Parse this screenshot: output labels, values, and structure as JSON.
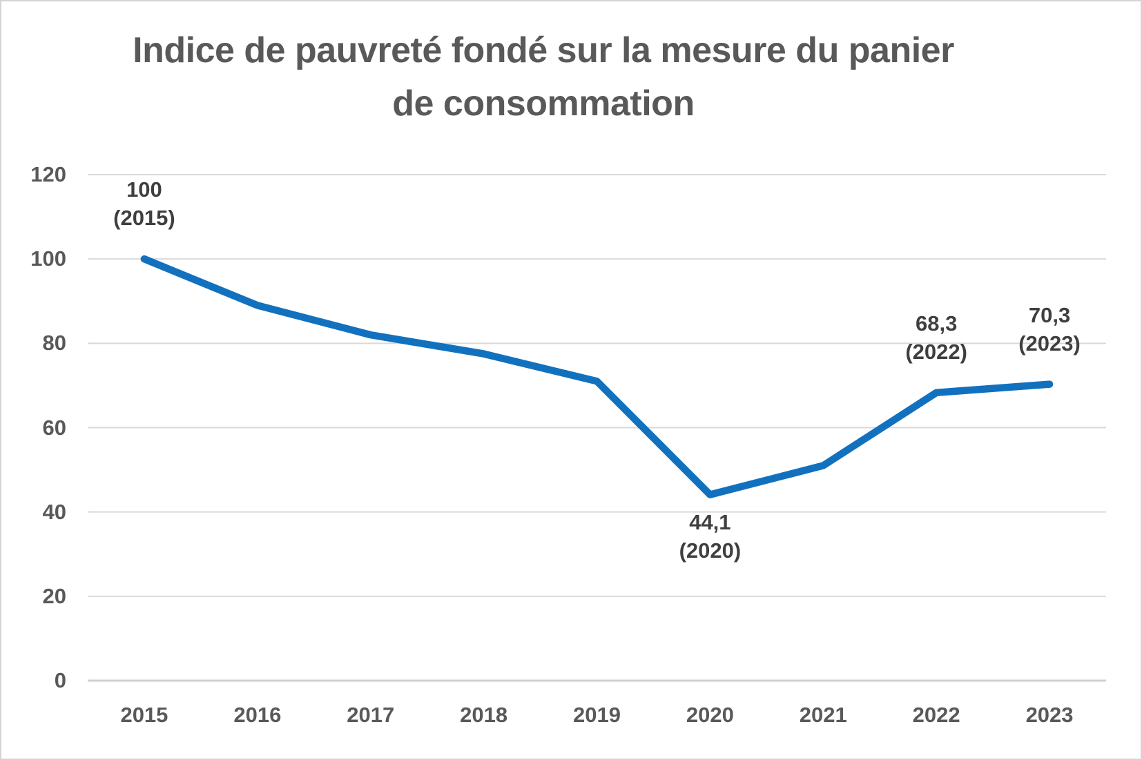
{
  "page": {
    "background": "#ffffff",
    "frame_border_color": "#d6d3d0"
  },
  "chart_data": {
    "type": "line",
    "title": "Indice de pauvreté fondé sur la mesure du panier de consommation",
    "title_lines": [
      "Indice de pauvreté fondé sur la mesure du panier",
      "de consommation"
    ],
    "categories": [
      "2015",
      "2016",
      "2017",
      "2018",
      "2019",
      "2020",
      "2021",
      "2022",
      "2023"
    ],
    "series": [
      {
        "name": "",
        "values": [
          100,
          89,
          82,
          77.5,
          71,
          44.1,
          51,
          68.3,
          70.3
        ]
      }
    ],
    "xlabel": "",
    "ylabel": "",
    "ylim": [
      0,
      120
    ],
    "yticks": [
      0,
      20,
      40,
      60,
      80,
      100,
      120
    ],
    "grid": true,
    "legend": "none",
    "colors": {
      "line": "#1271be",
      "title_text": "#595959",
      "axis_text": "#595959",
      "data_label_text": "#3f3f3f",
      "gridline": "#d9d9d9",
      "axis_line": "#d0d0d0"
    },
    "data_labels": [
      {
        "category": "2015",
        "value_text": "100",
        "year_text": "(2015)",
        "position": "above"
      },
      {
        "category": "2020",
        "value_text": "44,1",
        "year_text": "(2020)",
        "position": "below"
      },
      {
        "category": "2022",
        "value_text": "68,3",
        "year_text": "(2022)",
        "position": "above"
      },
      {
        "category": "2023",
        "value_text": "70,3",
        "year_text": "(2023)",
        "position": "above"
      }
    ]
  }
}
